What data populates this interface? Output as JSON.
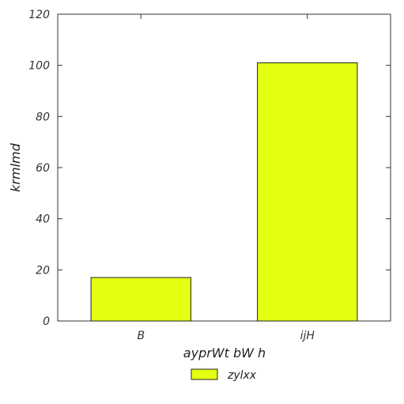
{
  "chart_data": {
    "type": "bar",
    "categories": [
      "B",
      "ijH"
    ],
    "series": [
      {
        "name": "zylxx",
        "values": [
          17,
          101
        ],
        "color": "#e5ff12"
      }
    ],
    "title": "",
    "xlabel": "ayprWt bW h",
    "ylabel": "krmlmd",
    "ylim": [
      0,
      120
    ],
    "yticks": [
      0,
      20,
      40,
      60,
      80,
      100,
      120
    ],
    "grid": false,
    "legend": {
      "placement": "bottom-center"
    },
    "bar_edge_color": "#222222"
  }
}
